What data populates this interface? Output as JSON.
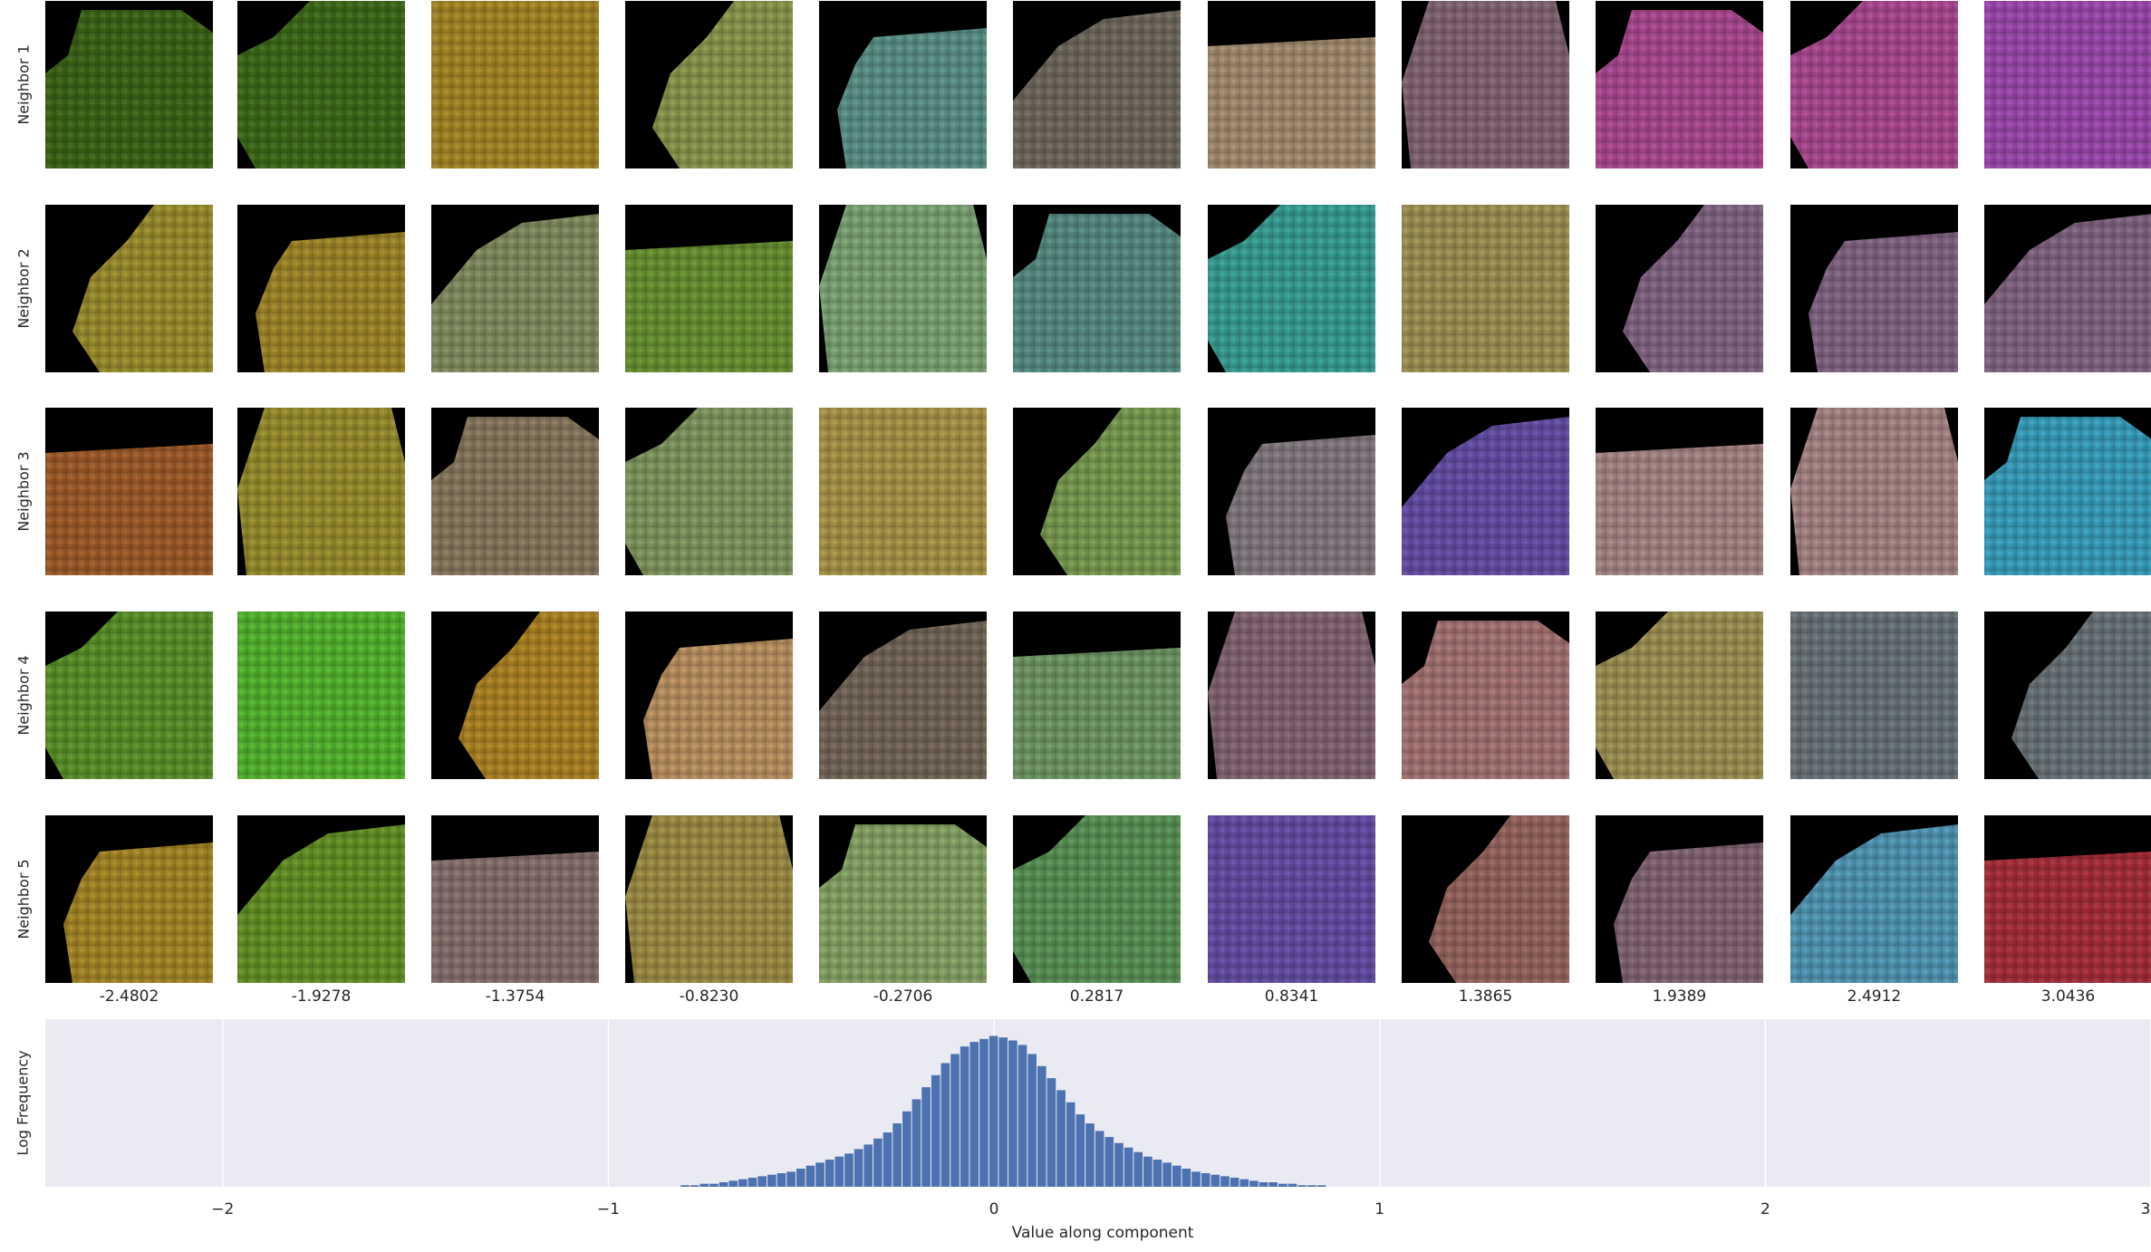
{
  "figure": {
    "row_labels": [
      "Neighbor 1",
      "Neighbor 2",
      "Neighbor 3",
      "Neighbor 4",
      "Neighbor 5"
    ],
    "column_values": [
      "-2.4802",
      "-1.9278",
      "-1.3754",
      "-0.8230",
      "-0.2706",
      "0.2817",
      "0.8341",
      "1.3865",
      "1.9389",
      "2.4912",
      "3.0436"
    ],
    "tile_colors": [
      [
        "#3f6a17",
        "#40701a",
        "#b08e26",
        "#93a050",
        "#5f9a90",
        "#766e62",
        "#ad9576",
        "#8a6a7a",
        "#b64c9a",
        "#b64c9a",
        "#a64cb8"
      ],
      [
        "#a3962f",
        "#a98e2a",
        "#8a9565",
        "#6e9a33",
        "#84ae7c",
        "#5a948a",
        "#3aa89c",
        "#a79a58",
        "#8a6a8a",
        "#8a6a8a",
        "#8a6a8a"
      ],
      [
        "#a8602a",
        "#a1962f",
        "#8f7f63",
        "#87a063",
        "#b39d4b",
        "#7fa454",
        "#8a8087",
        "#6a52b0",
        "#b18d8c",
        "#b18d8c",
        "#3aa8c8"
      ],
      [
        "#5f9a2a",
        "#58c030",
        "#b88b24",
        "#c89a66",
        "#7b6c5d",
        "#76a06a",
        "#8a6a7a",
        "#b07a7a",
        "#a79a58",
        "#6e7a80",
        "#6e7a80"
      ],
      [
        "#b08e26",
        "#6a9a26",
        "#8e7672",
        "#a89548",
        "#8eae6a",
        "#5e9a5a",
        "#6a52b0",
        "#a06a64",
        "#8a6a7a",
        "#55a0c0",
        "#b0303c"
      ]
    ]
  },
  "chart_data": {
    "type": "bar",
    "title": "",
    "xlabel": "Value along component",
    "ylabel": "Log Frequency",
    "xlim": [
      -2.46,
      3.0
    ],
    "x_ticks": [
      "−2",
      "−1",
      "0",
      "1",
      "2",
      "3"
    ],
    "x_tick_values": [
      -2,
      -1,
      0,
      1,
      2,
      3
    ],
    "grid": true,
    "bar_color": "#4c72b0",
    "background": "#eaeaf2",
    "bar_width": 0.025,
    "bars": {
      "x": [
        -0.8,
        -0.775,
        -0.75,
        -0.725,
        -0.7,
        -0.675,
        -0.65,
        -0.625,
        -0.6,
        -0.575,
        -0.55,
        -0.525,
        -0.5,
        -0.475,
        -0.45,
        -0.425,
        -0.4,
        -0.375,
        -0.35,
        -0.325,
        -0.3,
        -0.275,
        -0.25,
        -0.225,
        -0.2,
        -0.175,
        -0.15,
        -0.125,
        -0.1,
        -0.075,
        -0.05,
        -0.025,
        0.0,
        0.025,
        0.05,
        0.075,
        0.1,
        0.125,
        0.15,
        0.175,
        0.2,
        0.225,
        0.25,
        0.275,
        0.3,
        0.325,
        0.35,
        0.375,
        0.4,
        0.425,
        0.45,
        0.475,
        0.5,
        0.525,
        0.55,
        0.575,
        0.6,
        0.625,
        0.65,
        0.675,
        0.7,
        0.725,
        0.75,
        0.775,
        0.8,
        0.825,
        0.85
      ],
      "y": [
        0.01,
        0.01,
        0.02,
        0.02,
        0.03,
        0.04,
        0.05,
        0.06,
        0.07,
        0.08,
        0.09,
        0.1,
        0.12,
        0.14,
        0.16,
        0.18,
        0.2,
        0.22,
        0.25,
        0.28,
        0.32,
        0.36,
        0.42,
        0.5,
        0.58,
        0.66,
        0.74,
        0.82,
        0.88,
        0.93,
        0.96,
        0.98,
        1.0,
        0.99,
        0.97,
        0.94,
        0.88,
        0.8,
        0.72,
        0.64,
        0.56,
        0.48,
        0.42,
        0.37,
        0.33,
        0.29,
        0.26,
        0.23,
        0.2,
        0.18,
        0.16,
        0.14,
        0.12,
        0.1,
        0.09,
        0.08,
        0.07,
        0.06,
        0.05,
        0.04,
        0.03,
        0.03,
        0.02,
        0.02,
        0.01,
        0.01,
        0.01
      ]
    }
  }
}
